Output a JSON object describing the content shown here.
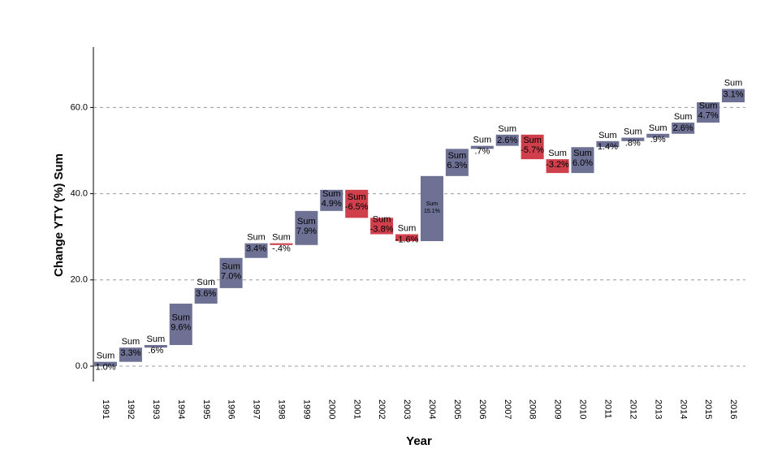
{
  "chart_data": {
    "type": "bar",
    "subtype": "waterfall",
    "xlabel": "Year",
    "ylabel": "Change YTY (%) Sum",
    "ylim": [
      -3,
      73
    ],
    "yticks": [
      0,
      20,
      40,
      60
    ],
    "ytick_labels": [
      "0.0",
      "20.0",
      "40.0",
      "60.0"
    ],
    "grid": "horizontal dashed",
    "bar_label_prefix": "Sum",
    "colors": {
      "increase": "#6e7194",
      "decrease": "#cf3f4c",
      "grid": "#999999"
    },
    "categories": [
      "1991",
      "1992",
      "1993",
      "1994",
      "1995",
      "1996",
      "1997",
      "1998",
      "1999",
      "2000",
      "2001",
      "2002",
      "2003",
      "2004",
      "2005",
      "2006",
      "2007",
      "2008",
      "2009",
      "2010",
      "2011",
      "2012",
      "2013",
      "2014",
      "2015",
      "2016"
    ],
    "values": [
      1.0,
      3.3,
      0.6,
      9.6,
      3.6,
      7.0,
      3.4,
      -0.4,
      7.9,
      4.9,
      -6.5,
      -3.8,
      -1.6,
      15.1,
      6.3,
      0.7,
      2.6,
      -5.7,
      -3.2,
      6.0,
      1.4,
      0.8,
      0.9,
      2.6,
      4.7,
      3.1
    ],
    "value_labels": [
      "1.0%",
      "3.3%",
      ".6%",
      "9.6%",
      "3.6%",
      "7.0%",
      "3.4%",
      "-.4%",
      "7.9%",
      "4.9%",
      "-6.5%",
      "-3.8%",
      "-1.6%",
      "15.1%",
      "6.3%",
      ".7%",
      "2.6%",
      "-5.7%",
      "-3.2%",
      "6.0%",
      "1.4%",
      ".8%",
      ".9%",
      "2.6%",
      "4.7%",
      "3.1%"
    ]
  }
}
